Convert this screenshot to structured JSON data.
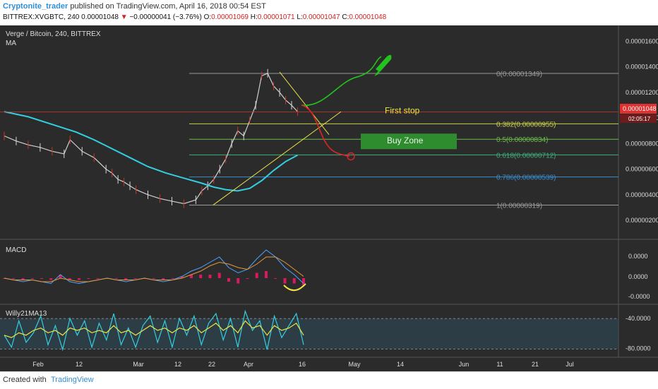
{
  "header": {
    "author": "Cryptonite_trader",
    "published": "published on TradingView.com, April 16, 2018 00:54 EST",
    "symbol": "BITTREX:XVGBTC, 240",
    "last": "0.00001048",
    "change_arrow": "▼",
    "change": "−0.00000041 (−3.76%)",
    "o_label": "O:",
    "o": "0.00001069",
    "h_label": "H:",
    "h": "0.00001071",
    "l_label": "L:",
    "l": "0.00001047",
    "c_label": "C:",
    "c": "0.00001048"
  },
  "footer": {
    "created_with": "Created with",
    "brand": "TradingView"
  },
  "chart_data": {
    "type": "line",
    "title": "Verge / Bitcoin, 240, BITTREX",
    "indicator": "MA",
    "colors": {
      "background": "#2b2b2b",
      "price": "#cfcfcf",
      "ma": "#33cfe0",
      "fib": "#c8d24a",
      "trend": "#e8e04a",
      "up_path": "#22c31e",
      "down_path": "#e02424",
      "buy_zone": "#2e8b2e",
      "macd_hist": "#d81b60",
      "willy": "#33cfe0",
      "willy_ma": "#f0e442"
    },
    "x_ticks": [
      "Feb",
      "12",
      "Mar",
      "12",
      "22",
      "Apr",
      "16",
      "May",
      "14",
      "Jun",
      "11",
      "21",
      "Jul"
    ],
    "y_ticks": [
      "0.00001600",
      "0.00001400",
      "0.00001200",
      "0.00001000",
      "0.00000800",
      "0.00000600",
      "0.00000400",
      "0.00000200"
    ],
    "ylim": [
      9e-07,
      1.7e-06
    ],
    "current_price": {
      "label": "0.00001048",
      "countdown": "02:05:17"
    },
    "price": {
      "x": [
        0,
        4,
        8,
        12,
        16,
        20,
        22,
        26,
        30,
        34,
        36,
        38,
        40,
        42,
        44,
        48,
        52,
        56,
        60,
        64,
        66,
        68,
        70,
        72,
        74,
        76,
        78,
        80,
        82,
        84,
        86,
        88,
        90,
        92,
        94,
        96,
        98
      ],
      "y": [
        8.6e-06,
        8.2e-06,
        7.9e-06,
        7.7e-06,
        7.4e-06,
        7.2e-06,
        8.3e-06,
        7.4e-06,
        6.9e-06,
        6e-06,
        5.7e-06,
        5.2e-06,
        5e-06,
        4.7e-06,
        4.4e-06,
        4e-06,
        3.7e-06,
        3.5e-06,
        3.3e-06,
        3.6e-06,
        4.3e-06,
        4.7e-06,
        5.2e-06,
        6e-06,
        6.8e-06,
        8e-06,
        9e-06,
        8.6e-06,
        9.8e-06,
        1.1e-05,
        1.33e-05,
        1.35e-05,
        1.25e-05,
        1.2e-05,
        1.14e-05,
        1.1e-05,
        1.05e-05
      ]
    },
    "ma": {
      "x": [
        0,
        8,
        16,
        24,
        30,
        36,
        42,
        48,
        54,
        60,
        66,
        70,
        74,
        78,
        82,
        86,
        90,
        94,
        98
      ],
      "y": [
        1.05e-05,
        1.01e-05,
        9.5e-06,
        8.9e-06,
        8.3e-06,
        7.6e-06,
        6.9e-06,
        6.2e-06,
        5.7e-06,
        5.3e-06,
        4.9e-06,
        4.6e-06,
        4.4e-06,
        4.3e-06,
        4.5e-06,
        5.1e-06,
        5.9e-06,
        6.6e-06,
        7.1e-06
      ]
    },
    "fib_levels": [
      {
        "label": "0(0.00001349)",
        "value": 1.349e-05,
        "color": "#9a9a9a"
      },
      {
        "label": "0.382(0.00000955)",
        "value": 9.55e-06,
        "color": "#c8d24a"
      },
      {
        "label": "0.5(0.00000834)",
        "value": 8.34e-06,
        "color": "#6dbb4a"
      },
      {
        "label": "0.618(0.00000712)",
        "value": 7.12e-06,
        "color": "#3fae7a"
      },
      {
        "label": "0.786(0.00000539)",
        "value": 5.39e-06,
        "color": "#3a8fcf"
      },
      {
        "label": "1(0.00000319)",
        "value": 3.19e-06,
        "color": "#9a9a9a"
      }
    ],
    "annotations": {
      "first_stop": "First stop",
      "buy_zone": "Buy Zone"
    },
    "macd": {
      "label": "MACD",
      "y_ticks": [
        "0.0000",
        "0.0000",
        "-0.0000"
      ],
      "line1": [
        0,
        -1,
        -2,
        -1,
        -2,
        -3,
        2,
        -2,
        -3,
        -2,
        -1,
        0,
        -1,
        -2,
        -1,
        0,
        -1,
        -2,
        -1,
        1,
        4,
        6,
        9,
        12,
        6,
        3,
        5,
        11,
        16,
        12,
        6,
        2,
        -3
      ],
      "line2": [
        0,
        -1,
        -1,
        -1,
        -2,
        -2,
        0,
        -1,
        -2,
        -2,
        -1,
        0,
        -1,
        -1,
        -1,
        0,
        -1,
        -1,
        -1,
        0,
        2,
        4,
        7,
        9,
        8,
        6,
        5,
        8,
        12,
        12,
        9,
        5,
        1
      ],
      "hist": [
        0,
        0,
        -1,
        0,
        0,
        -1,
        2,
        -1,
        -1,
        0,
        0,
        0,
        0,
        -1,
        0,
        0,
        0,
        -1,
        0,
        1,
        2,
        2,
        2,
        3,
        -2,
        -3,
        0,
        3,
        4,
        0,
        -3,
        -3,
        -4
      ]
    },
    "willy": {
      "label": "Willy21MA13",
      "y_ticks": [
        "-40.0000",
        "-80.0000"
      ],
      "line": [
        -60,
        -85,
        -30,
        -75,
        -55,
        -20,
        -80,
        -40,
        -90,
        -25,
        -60,
        -30,
        -85,
        -35,
        -70,
        -15,
        -80,
        -45,
        -85,
        -40,
        -20,
        -75,
        -30,
        -85,
        -25,
        -60,
        -20,
        -80,
        -35,
        -15,
        -70,
        -25,
        -85,
        -10,
        -50,
        -30,
        -90,
        -20,
        -65,
        -40,
        -15,
        -80
      ],
      "ma": [
        -60,
        -65,
        -55,
        -60,
        -50,
        -45,
        -55,
        -50,
        -60,
        -45,
        -50,
        -45,
        -55,
        -50,
        -55,
        -40,
        -55,
        -50,
        -60,
        -50,
        -40,
        -50,
        -45,
        -55,
        -45,
        -50,
        -40,
        -55,
        -45,
        -35,
        -50,
        -40,
        -55,
        -30,
        -45,
        -40,
        -60,
        -40,
        -50,
        -45,
        -35,
        -60
      ]
    }
  }
}
